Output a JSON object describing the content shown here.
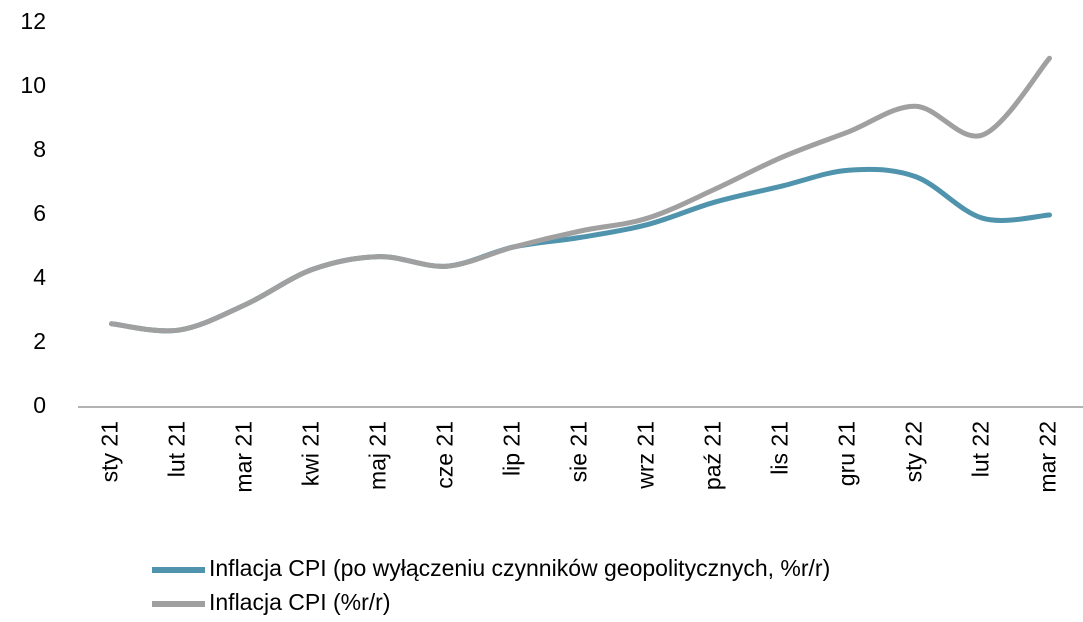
{
  "chart_data": {
    "type": "line",
    "categories": [
      "sty 21",
      "lut 21",
      "mar 21",
      "kwi 21",
      "maj 21",
      "cze 21",
      "lip 21",
      "sie 21",
      "wrz 21",
      "paź 21",
      "lis 21",
      "gru 21",
      "sty 22",
      "lut 22",
      "mar 22"
    ],
    "series": [
      {
        "name": "Inflacja CPI (po wyłączeniu czynników geopolitycznych, %r/r)",
        "color": "#4f93ad",
        "values": [
          2.6,
          2.4,
          3.2,
          4.3,
          4.7,
          4.4,
          5.0,
          5.3,
          5.7,
          6.4,
          6.9,
          7.4,
          7.2,
          5.9,
          6.0
        ]
      },
      {
        "name": "Inflacja CPI (%r/r)",
        "color": "#a0a0a0",
        "values": [
          2.6,
          2.4,
          3.2,
          4.3,
          4.7,
          4.4,
          5.0,
          5.5,
          5.9,
          6.8,
          7.8,
          8.6,
          9.4,
          8.5,
          10.9
        ]
      }
    ],
    "ylim": [
      0,
      12
    ],
    "yticks": [
      0,
      2,
      4,
      6,
      8,
      10,
      12
    ],
    "grid": false
  }
}
